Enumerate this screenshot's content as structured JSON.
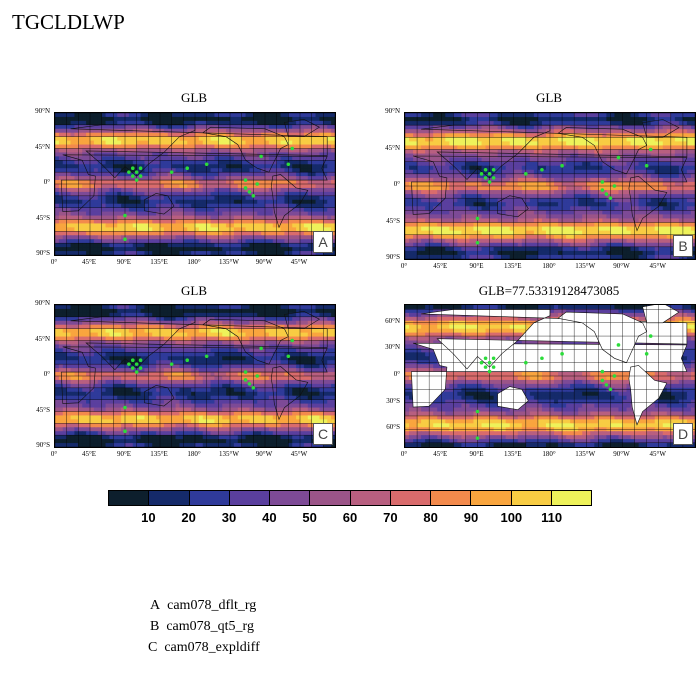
{
  "title": "TGCLDLWP",
  "panels": [
    {
      "id": "A",
      "title": "GLB",
      "lat_labels": [
        "90°N",
        "45°N",
        "0°",
        "45°S",
        "90°S"
      ]
    },
    {
      "id": "B",
      "title": "GLB",
      "lat_labels": [
        "90°N",
        "45°N",
        "0°",
        "45°S",
        "90°S"
      ]
    },
    {
      "id": "C",
      "title": "GLB",
      "lat_labels": [
        "90°N",
        "45°N",
        "0°",
        "45°S",
        "90°S"
      ]
    },
    {
      "id": "D",
      "title": "GLB=77.53319128473085",
      "lat_labels": [
        "60°N",
        "30°N",
        "0°",
        "30°S",
        "60°S"
      ]
    }
  ],
  "lon_labels": [
    "0°",
    "45°E",
    "90°E",
    "135°E",
    "180°",
    "135°W",
    "90°W",
    "45°W"
  ],
  "colorbar": {
    "labels": [
      "10",
      "20",
      "30",
      "40",
      "50",
      "60",
      "70",
      "80",
      "90",
      "100",
      "110"
    ],
    "colors": [
      "#0d1f2d",
      "#152a6a",
      "#2f3a9a",
      "#5a3f9e",
      "#7d4a96",
      "#9b5488",
      "#b85f80",
      "#d96b6c",
      "#f38a4c",
      "#f9a53e",
      "#f8cc43",
      "#eef25a"
    ]
  },
  "legend": [
    {
      "letter": "A",
      "name": "cam078_dflt_rg"
    },
    {
      "letter": "B",
      "name": "cam078_qt5_rg"
    },
    {
      "letter": "C",
      "name": "cam078_expldiff"
    }
  ],
  "chart_data": {
    "type": "heatmap",
    "variable": "TGCLDLWP",
    "panels": [
      "A",
      "B",
      "C",
      "D"
    ],
    "levels": [
      10,
      20,
      30,
      40,
      50,
      60,
      70,
      80,
      90,
      100,
      110
    ],
    "global_mean_D": 77.53319128473085,
    "lon_range": [
      0,
      360
    ],
    "lat_range": [
      -90,
      90
    ]
  }
}
